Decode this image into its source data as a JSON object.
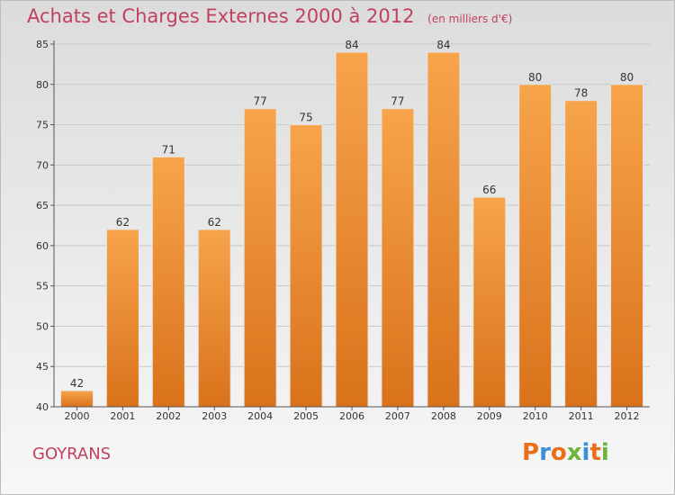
{
  "header": {
    "title": "Achats et Charges Externes 2000 à 2012",
    "subtitle": "(en milliers d'€)"
  },
  "footer": {
    "commune": "GOYRANS",
    "logo": {
      "letters": [
        "P",
        "r",
        "o",
        "x",
        "i",
        "t",
        "i"
      ],
      "colors": [
        "#e8701a",
        "#3b8fd8",
        "#e8701a",
        "#6db33f",
        "#3b8fd8",
        "#e8701a",
        "#6db33f"
      ]
    }
  },
  "chart_data": {
    "type": "bar",
    "title": "Achats et Charges Externes 2000 à 2012",
    "subtitle": "(en milliers d'€)",
    "categories": [
      "2000",
      "2001",
      "2002",
      "2003",
      "2004",
      "2005",
      "2006",
      "2007",
      "2008",
      "2009",
      "2010",
      "2011",
      "2012"
    ],
    "values": [
      42,
      62,
      71,
      62,
      77,
      75,
      84,
      77,
      84,
      66,
      80,
      78,
      80
    ],
    "ylim": [
      40,
      85
    ],
    "yticks": [
      40,
      45,
      50,
      55,
      60,
      65,
      70,
      75,
      80,
      85
    ],
    "grid": true,
    "bar_color": "#f0922e"
  }
}
